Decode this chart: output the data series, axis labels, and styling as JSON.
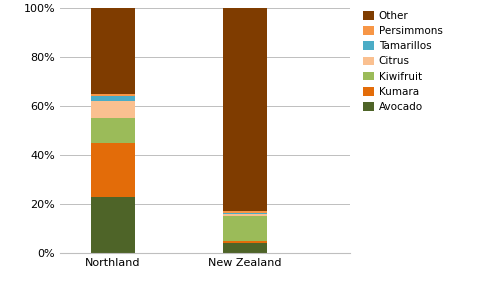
{
  "categories": [
    "Northland",
    "New Zealand"
  ],
  "series": [
    {
      "name": "Avocado",
      "values": [
        23,
        4
      ],
      "color": "#4E6428"
    },
    {
      "name": "Kumara",
      "values": [
        22,
        1
      ],
      "color": "#E36C09"
    },
    {
      "name": "Kiwifruit",
      "values": [
        10,
        10
      ],
      "color": "#9BBB59"
    },
    {
      "name": "Citrus",
      "values": [
        7,
        1
      ],
      "color": "#FAC090"
    },
    {
      "name": "Tamarillos",
      "values": [
        2,
        0.5
      ],
      "color": "#4BACC6"
    },
    {
      "name": "Persimmons",
      "values": [
        1,
        0.5
      ],
      "color": "#F79646"
    },
    {
      "name": "Other",
      "values": [
        35,
        83
      ],
      "color": "#7F3C00"
    }
  ],
  "ylim": [
    0,
    100
  ],
  "yticks": [
    0,
    20,
    40,
    60,
    80,
    100
  ],
  "ytick_labels": [
    "0%",
    "20%",
    "40%",
    "60%",
    "80%",
    "100%"
  ],
  "bar_width": 0.5,
  "figsize": [
    5.0,
    2.81
  ],
  "dpi": 100,
  "background_color": "#FFFFFF",
  "grid_color": "#BFBFBF",
  "legend_fontsize": 7.5,
  "tick_fontsize": 8,
  "x_positions": [
    0,
    1.5
  ]
}
